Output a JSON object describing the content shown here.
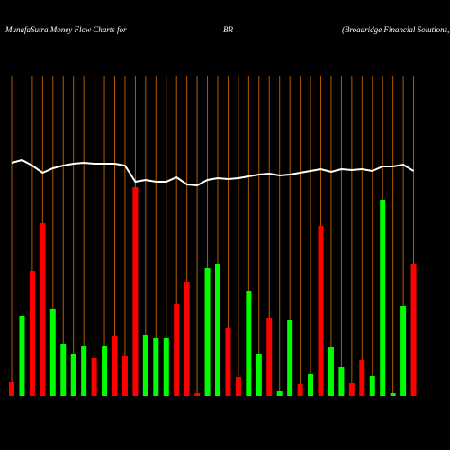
{
  "chart_data": {
    "type": "bar",
    "title": "MunafaSutra  Money Flow  Charts for",
    "symbol": "BR",
    "company": "(Broadridge   Financial Solutions,",
    "ylim": [
      0,
      355
    ],
    "background": "#000000",
    "grid_color": "#b35a00",
    "series": [
      {
        "name": "money-flow",
        "colors": [
          "#ff0000",
          "#00ff00",
          "#ff0000",
          "#ff0000",
          "#00ff00",
          "#00ff00",
          "#00ff00",
          "#00ff00",
          "#ff0000",
          "#00ff00",
          "#ff0000",
          "#ff0000",
          "#ff0000",
          "#00ff00",
          "#00ff00",
          "#00ff00",
          "#ff0000",
          "#ff0000",
          "#ff0000",
          "#00ff00",
          "#00ff00",
          "#ff0000",
          "#ff0000",
          "#00ff00",
          "#00ff00",
          "#ff0000",
          "#00ff00",
          "#00ff00",
          "#ff0000",
          "#00ff00",
          "#ff0000",
          "#00ff00",
          "#00ff00",
          "#ff0000",
          "#ff0000",
          "#00ff00",
          "#00ff00",
          "#00ff00",
          "#00ff00",
          "#ff0000"
        ],
        "values": [
          16,
          89,
          139,
          192,
          97,
          58,
          47,
          56,
          42,
          56,
          67,
          44,
          232,
          68,
          64,
          65,
          102,
          127,
          3,
          142,
          147,
          76,
          21,
          117,
          47,
          87,
          6,
          84,
          13,
          24,
          189,
          54,
          32,
          15,
          40,
          22,
          218,
          3,
          100,
          147
        ]
      },
      {
        "name": "price-line",
        "color": "#ffffff",
        "values": [
          259,
          262,
          256,
          248,
          253,
          256,
          258,
          259,
          258,
          258,
          258,
          256,
          238,
          240,
          238,
          238,
          243,
          235,
          234,
          240,
          242,
          241,
          242,
          244,
          246,
          247,
          245,
          246,
          248,
          250,
          252,
          249,
          252,
          251,
          252,
          250,
          255,
          255,
          257,
          250
        ]
      }
    ]
  }
}
